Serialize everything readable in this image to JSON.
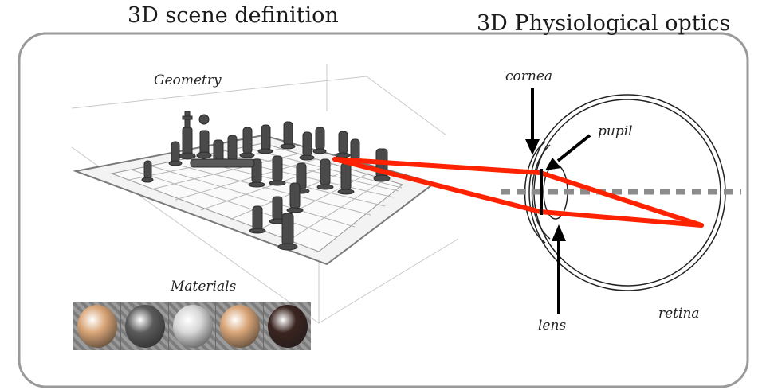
{
  "titles": {
    "scene": "3D scene definition",
    "optics": "3D Physiological optics"
  },
  "labels": {
    "geometry": "Geometry",
    "materials": "Materials",
    "cornea": "cornea",
    "pupil": "pupil",
    "lens": "lens",
    "retina": "retina"
  },
  "colors": {
    "rays": "#ff2200",
    "frame": "#9a9a9a",
    "axis": "#8c8c8c",
    "chess_pieces": "#4a4a4a"
  },
  "materials": [
    {
      "name": "skin",
      "color": "#d9a577"
    },
    {
      "name": "dark-grey",
      "color": "#5b5b5b"
    },
    {
      "name": "light-grey",
      "color": "#d8d8d8"
    },
    {
      "name": "skin",
      "color": "#d9a577"
    },
    {
      "name": "dark-brown",
      "color": "#3a2420"
    }
  ]
}
